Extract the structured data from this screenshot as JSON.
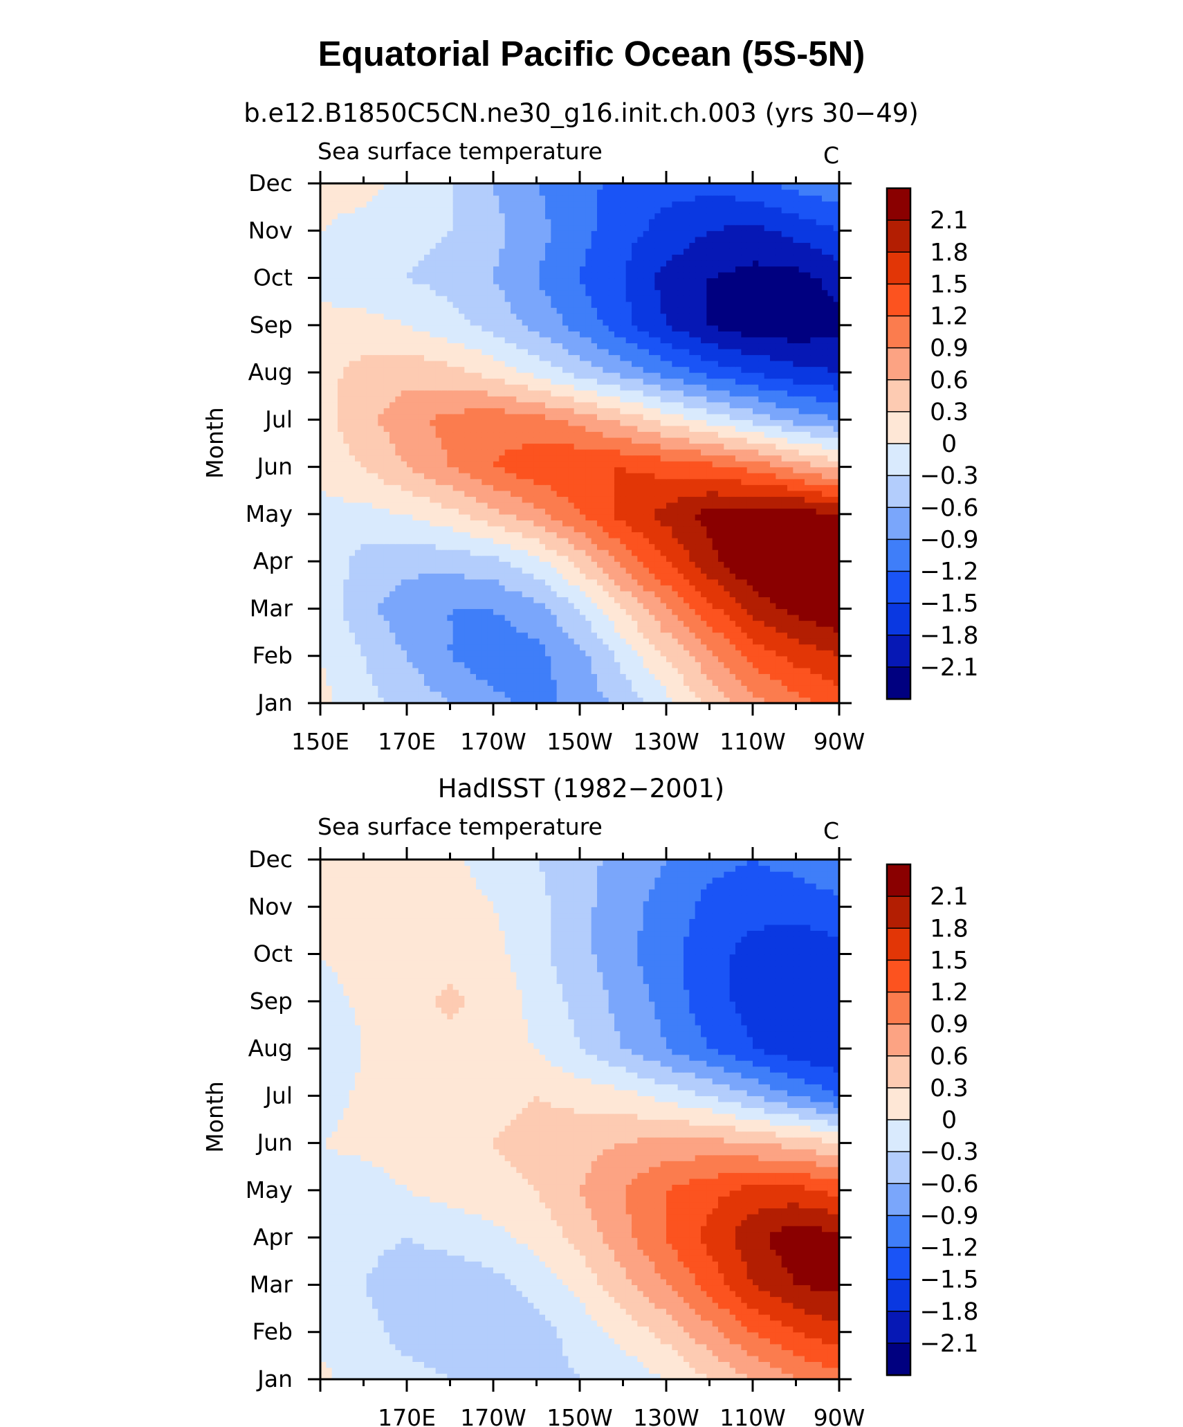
{
  "title": "Equatorial Pacific Ocean (5S-5N)",
  "colors": [
    "#000080",
    "#0618b5",
    "#0a38e1",
    "#1a54f6",
    "#3f7ef9",
    "#7aa6fb",
    "#b3cdfc",
    "#d9eafd",
    "#fee7d6",
    "#fdcbb2",
    "#fca383",
    "#fb7c4e",
    "#fc531f",
    "#e23606",
    "#b31e02",
    "#8a0000"
  ],
  "chart_data": [
    {
      "type": "heatmap",
      "subtitle": "b.e12.B1850C5CN.ne30_g16.init.ch.003 (yrs 30−49)",
      "left_label": "Sea surface temperature",
      "units": "C",
      "ylabel": "Month",
      "x_ticks": [
        "150E",
        "170E",
        "170W",
        "150W",
        "130W",
        "110W",
        "90W"
      ],
      "y_ticks": [
        "Jan",
        "Feb",
        "Mar",
        "Apr",
        "May",
        "Jun",
        "Jul",
        "Aug",
        "Sep",
        "Oct",
        "Nov",
        "Dec"
      ],
      "xlim": [
        150,
        270
      ],
      "levels": [
        "2.1",
        "1.8",
        "1.5",
        "1.2",
        "0.9",
        "0.6",
        "0.3",
        "0",
        "−0.3",
        "−0.6",
        "−0.9",
        "−1.2",
        "−1.5",
        "−1.8",
        "−2.1"
      ],
      "x": [
        150,
        160,
        170,
        180,
        190,
        200,
        210,
        220,
        230,
        240,
        250,
        260,
        270
      ],
      "z": [
        [
          0.1,
          -0.2,
          -0.4,
          -0.6,
          -0.8,
          -1.0,
          -0.8,
          -0.5,
          -0.1,
          0.4,
          0.8,
          1.1,
          1.3
        ],
        [
          0.0,
          -0.3,
          -0.6,
          -0.9,
          -1.1,
          -1.0,
          -0.7,
          -0.2,
          0.3,
          0.8,
          1.3,
          1.6,
          1.8
        ],
        [
          -0.1,
          -0.5,
          -0.8,
          -0.9,
          -0.9,
          -0.7,
          -0.3,
          0.3,
          0.9,
          1.4,
          1.9,
          2.2,
          2.4
        ],
        [
          -0.1,
          -0.4,
          -0.5,
          -0.5,
          -0.4,
          -0.1,
          0.4,
          1.0,
          1.5,
          2.0,
          2.4,
          2.6,
          2.6
        ],
        [
          -0.1,
          -0.1,
          0.0,
          0.2,
          0.5,
          0.8,
          1.2,
          1.6,
          1.9,
          2.2,
          2.3,
          2.3,
          2.1
        ],
        [
          0.1,
          0.3,
          0.6,
          0.9,
          1.2,
          1.4,
          1.5,
          1.5,
          1.4,
          1.3,
          1.1,
          0.8,
          0.5
        ],
        [
          0.2,
          0.5,
          0.8,
          1.0,
          1.1,
          1.0,
          0.8,
          0.5,
          0.2,
          -0.1,
          -0.4,
          -0.7,
          -0.9
        ],
        [
          0.2,
          0.4,
          0.5,
          0.4,
          0.2,
          -0.1,
          -0.4,
          -0.7,
          -1.0,
          -1.3,
          -1.5,
          -1.7,
          -1.8
        ],
        [
          0.1,
          0.1,
          0.0,
          -0.2,
          -0.4,
          -0.7,
          -1.0,
          -1.4,
          -1.8,
          -2.1,
          -2.3,
          -2.3,
          -2.2
        ],
        [
          -0.1,
          -0.2,
          -0.3,
          -0.4,
          -0.6,
          -0.9,
          -1.2,
          -1.5,
          -1.9,
          -2.1,
          -2.2,
          -2.2,
          -2.0
        ],
        [
          0.0,
          -0.1,
          -0.2,
          -0.3,
          -0.5,
          -0.8,
          -1.1,
          -1.4,
          -1.6,
          -1.8,
          -1.9,
          -1.7,
          -1.5
        ],
        [
          0.1,
          0.1,
          -0.1,
          -0.3,
          -0.6,
          -0.9,
          -1.1,
          -1.3,
          -1.4,
          -1.4,
          -1.3,
          -1.1,
          -1.0
        ]
      ]
    },
    {
      "type": "heatmap",
      "subtitle": "HadISST (1982−2001)",
      "left_label": "Sea surface temperature",
      "units": "C",
      "ylabel": "Month",
      "x_ticks": [
        "170E",
        "170W",
        "150W",
        "130W",
        "110W",
        "90W"
      ],
      "y_ticks": [
        "Jan",
        "Feb",
        "Mar",
        "Apr",
        "May",
        "Jun",
        "Jul",
        "Aug",
        "Sep",
        "Oct",
        "Nov",
        "Dec"
      ],
      "xlim": [
        150,
        270
      ],
      "levels": [
        "2.1",
        "1.8",
        "1.5",
        "1.2",
        "0.9",
        "0.6",
        "0.3",
        "0",
        "−0.3",
        "−0.6",
        "−0.9",
        "−1.2",
        "−1.5",
        "−1.8",
        "−2.1"
      ],
      "x": [
        150,
        160,
        170,
        180,
        190,
        200,
        210,
        220,
        230,
        240,
        250,
        260,
        270
      ],
      "z": [
        [
          0.05,
          -0.1,
          -0.2,
          -0.3,
          -0.4,
          -0.4,
          -0.3,
          -0.2,
          0.0,
          0.3,
          0.6,
          0.9,
          1.1
        ],
        [
          -0.05,
          -0.2,
          -0.4,
          -0.5,
          -0.5,
          -0.4,
          -0.2,
          0.1,
          0.4,
          0.8,
          1.2,
          1.5,
          1.7
        ],
        [
          -0.1,
          -0.3,
          -0.5,
          -0.5,
          -0.4,
          -0.2,
          0.1,
          0.5,
          0.9,
          1.3,
          1.8,
          2.1,
          2.2
        ],
        [
          -0.1,
          -0.2,
          -0.3,
          -0.2,
          -0.1,
          0.1,
          0.4,
          0.8,
          1.2,
          1.6,
          2.0,
          2.3,
          2.2
        ],
        [
          -0.1,
          -0.1,
          0.0,
          0.1,
          0.2,
          0.3,
          0.6,
          0.9,
          1.2,
          1.4,
          1.6,
          1.6,
          1.4
        ],
        [
          0.0,
          0.05,
          0.1,
          0.2,
          0.3,
          0.4,
          0.5,
          0.6,
          0.7,
          0.7,
          0.6,
          0.5,
          0.3
        ],
        [
          -0.1,
          0.05,
          0.1,
          0.15,
          0.2,
          0.3,
          0.2,
          0.1,
          -0.1,
          -0.3,
          -0.6,
          -0.9,
          -1.2
        ],
        [
          -0.2,
          0.0,
          0.15,
          0.2,
          0.1,
          0.0,
          -0.3,
          -0.6,
          -0.9,
          -1.2,
          -1.5,
          -1.7,
          -1.8
        ],
        [
          -0.1,
          0.05,
          0.2,
          0.35,
          0.2,
          -0.1,
          -0.4,
          -0.7,
          -1.0,
          -1.4,
          -1.6,
          -1.8,
          -1.8
        ],
        [
          0.0,
          0.1,
          0.2,
          0.2,
          0.1,
          -0.2,
          -0.5,
          -0.8,
          -1.1,
          -1.4,
          -1.6,
          -1.7,
          -1.6
        ],
        [
          0.05,
          0.1,
          0.15,
          0.1,
          0.0,
          -0.2,
          -0.5,
          -0.8,
          -1.0,
          -1.3,
          -1.4,
          -1.4,
          -1.3
        ],
        [
          0.05,
          0.1,
          0.1,
          0.05,
          -0.1,
          -0.3,
          -0.5,
          -0.7,
          -0.9,
          -1.1,
          -1.2,
          -1.1,
          -0.9
        ]
      ]
    }
  ]
}
